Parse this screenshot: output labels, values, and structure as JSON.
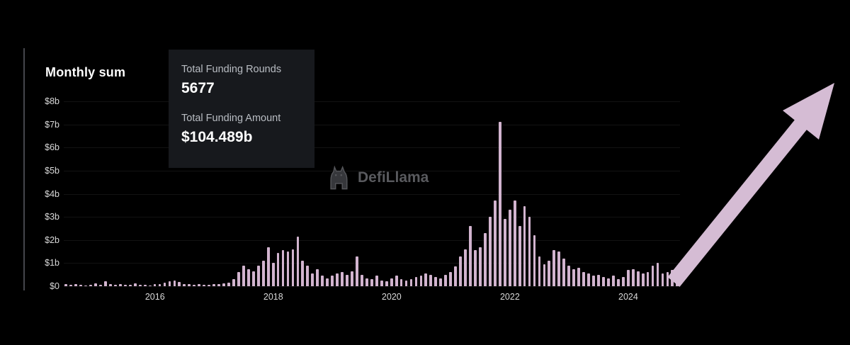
{
  "page": {
    "title": "Monthly sum"
  },
  "tooltip": {
    "rounds_label": "Total Funding Rounds",
    "rounds_value": "5677",
    "amount_label": "Total Funding Amount",
    "amount_value": "$104.489b"
  },
  "watermark": {
    "text": "DefiLlama"
  },
  "colors": {
    "background": "#000000",
    "bar": "#d2b4cf",
    "arrow": "#d5bcd4",
    "tooltip_bg": "#17191d",
    "axis_text": "#d9d9d9",
    "watermark_text": "#595a5e"
  },
  "chart_data": {
    "type": "bar",
    "title": "Monthly sum",
    "xlabel": "",
    "ylabel": "",
    "ylim": [
      0,
      8
    ],
    "grid": true,
    "legend": false,
    "bar_color": "#d2b4cf",
    "y_ticks": [
      "$8b",
      "$7b",
      "$6b",
      "$5b",
      "$4b",
      "$3b",
      "$2b",
      "$1b",
      "$0"
    ],
    "x_ticks": [
      "2016",
      "2018",
      "2020",
      "2022",
      "2024"
    ],
    "x": [
      "2014-07",
      "2014-08",
      "2014-09",
      "2014-10",
      "2014-11",
      "2014-12",
      "2015-01",
      "2015-02",
      "2015-03",
      "2015-04",
      "2015-05",
      "2015-06",
      "2015-07",
      "2015-08",
      "2015-09",
      "2015-10",
      "2015-11",
      "2015-12",
      "2016-01",
      "2016-02",
      "2016-03",
      "2016-04",
      "2016-05",
      "2016-06",
      "2016-07",
      "2016-08",
      "2016-09",
      "2016-10",
      "2016-11",
      "2016-12",
      "2017-01",
      "2017-02",
      "2017-03",
      "2017-04",
      "2017-05",
      "2017-06",
      "2017-07",
      "2017-08",
      "2017-09",
      "2017-10",
      "2017-11",
      "2017-12",
      "2018-01",
      "2018-02",
      "2018-03",
      "2018-04",
      "2018-05",
      "2018-06",
      "2018-07",
      "2018-08",
      "2018-09",
      "2018-10",
      "2018-11",
      "2018-12",
      "2019-01",
      "2019-02",
      "2019-03",
      "2019-04",
      "2019-05",
      "2019-06",
      "2019-07",
      "2019-08",
      "2019-09",
      "2019-10",
      "2019-11",
      "2019-12",
      "2020-01",
      "2020-02",
      "2020-03",
      "2020-04",
      "2020-05",
      "2020-06",
      "2020-07",
      "2020-08",
      "2020-09",
      "2020-10",
      "2020-11",
      "2020-12",
      "2021-01",
      "2021-02",
      "2021-03",
      "2021-04",
      "2021-05",
      "2021-06",
      "2021-07",
      "2021-08",
      "2021-09",
      "2021-10",
      "2021-11",
      "2021-12",
      "2022-01",
      "2022-02",
      "2022-03",
      "2022-04",
      "2022-05",
      "2022-06",
      "2022-07",
      "2022-08",
      "2022-09",
      "2022-10",
      "2022-11",
      "2022-12",
      "2023-01",
      "2023-02",
      "2023-03",
      "2023-04",
      "2023-05",
      "2023-06",
      "2023-07",
      "2023-08",
      "2023-09",
      "2023-10",
      "2023-11",
      "2023-12",
      "2024-01",
      "2024-02",
      "2024-03",
      "2024-04",
      "2024-05",
      "2024-06",
      "2024-07",
      "2024-08",
      "2024-09",
      "2024-10",
      "2024-11"
    ],
    "values": [
      0.08,
      0.05,
      0.1,
      0.06,
      0.04,
      0.07,
      0.12,
      0.05,
      0.2,
      0.08,
      0.06,
      0.1,
      0.07,
      0.05,
      0.12,
      0.06,
      0.05,
      0.04,
      0.1,
      0.08,
      0.15,
      0.2,
      0.25,
      0.18,
      0.1,
      0.08,
      0.06,
      0.1,
      0.07,
      0.05,
      0.08,
      0.1,
      0.12,
      0.15,
      0.3,
      0.6,
      0.9,
      0.75,
      0.65,
      0.9,
      1.1,
      1.7,
      1.0,
      1.45,
      1.55,
      1.5,
      1.6,
      2.15,
      1.1,
      0.9,
      0.55,
      0.75,
      0.45,
      0.35,
      0.45,
      0.55,
      0.6,
      0.5,
      0.65,
      1.3,
      0.5,
      0.35,
      0.3,
      0.45,
      0.25,
      0.2,
      0.35,
      0.45,
      0.3,
      0.25,
      0.3,
      0.4,
      0.45,
      0.55,
      0.5,
      0.4,
      0.35,
      0.5,
      0.6,
      0.85,
      1.3,
      1.6,
      2.6,
      1.55,
      1.7,
      2.3,
      3.0,
      3.7,
      7.1,
      2.9,
      3.3,
      3.7,
      2.6,
      3.45,
      3.0,
      2.2,
      1.3,
      0.95,
      1.1,
      1.55,
      1.5,
      1.2,
      0.9,
      0.75,
      0.8,
      0.6,
      0.55,
      0.45,
      0.5,
      0.4,
      0.35,
      0.45,
      0.3,
      0.4,
      0.7,
      0.75,
      0.65,
      0.55,
      0.6,
      0.9,
      1.0,
      0.55,
      0.6,
      0.7,
      0.8
    ]
  }
}
